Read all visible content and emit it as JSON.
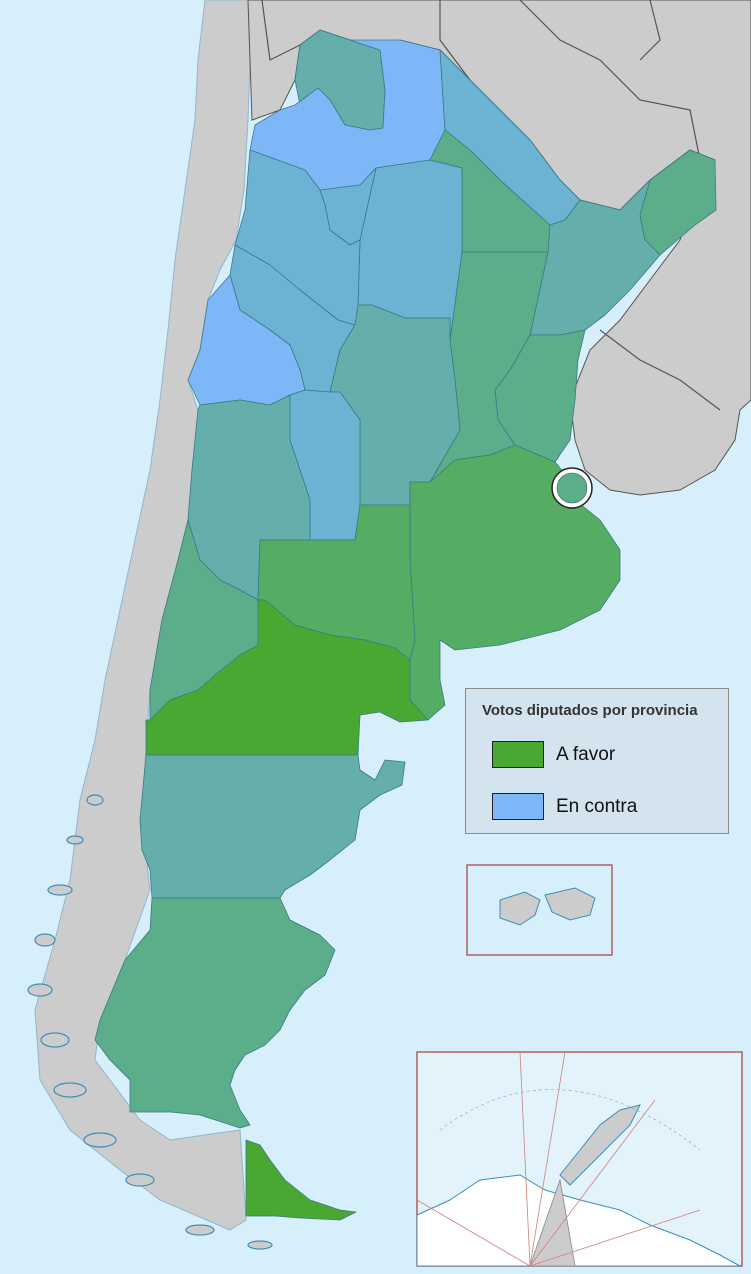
{
  "legend": {
    "title": "Votos diputados por provincia",
    "items": [
      {
        "label": "A favor",
        "color": "#48a832"
      },
      {
        "label": "En contra",
        "color": "#7db7f8"
      }
    ]
  },
  "colors": {
    "sea": "#d6effb",
    "neighbor_land": "#cccccc",
    "border": "#2e6a8a",
    "favor_strong": "#48a832",
    "favor": "#54ad63",
    "split_green": "#5cae8a",
    "split_teal": "#64afab",
    "split_blue": "#6cb2d3",
    "contra": "#7db7f8",
    "inset_frame": "#b06060"
  },
  "regions": [
    {
      "name": "Jujuy",
      "vote": "split_teal"
    },
    {
      "name": "Salta",
      "vote": "contra"
    },
    {
      "name": "Formosa",
      "vote": "split_blue"
    },
    {
      "name": "Chaco",
      "vote": "split_green"
    },
    {
      "name": "Misiones",
      "vote": "split_green"
    },
    {
      "name": "Catamarca",
      "vote": "split_blue"
    },
    {
      "name": "Tucuman",
      "vote": "split_blue"
    },
    {
      "name": "Santiago del Estero",
      "vote": "split_blue"
    },
    {
      "name": "Corrientes",
      "vote": "split_teal"
    },
    {
      "name": "La Rioja",
      "vote": "split_blue"
    },
    {
      "name": "Santa Fe",
      "vote": "split_green"
    },
    {
      "name": "Entre Rios",
      "vote": "split_green"
    },
    {
      "name": "San Juan",
      "vote": "contra"
    },
    {
      "name": "Cordoba",
      "vote": "split_teal"
    },
    {
      "name": "San Luis",
      "vote": "split_blue"
    },
    {
      "name": "Mendoza",
      "vote": "split_teal"
    },
    {
      "name": "Buenos Aires",
      "vote": "favor"
    },
    {
      "name": "Ciudad de Buenos Aires",
      "vote": "split_green"
    },
    {
      "name": "La Pampa",
      "vote": "favor"
    },
    {
      "name": "Neuquen",
      "vote": "split_green"
    },
    {
      "name": "Rio Negro",
      "vote": "favor_strong"
    },
    {
      "name": "Chubut",
      "vote": "split_teal"
    },
    {
      "name": "Santa Cruz",
      "vote": "split_green"
    },
    {
      "name": "Tierra del Fuego",
      "vote": "favor_strong"
    }
  ]
}
